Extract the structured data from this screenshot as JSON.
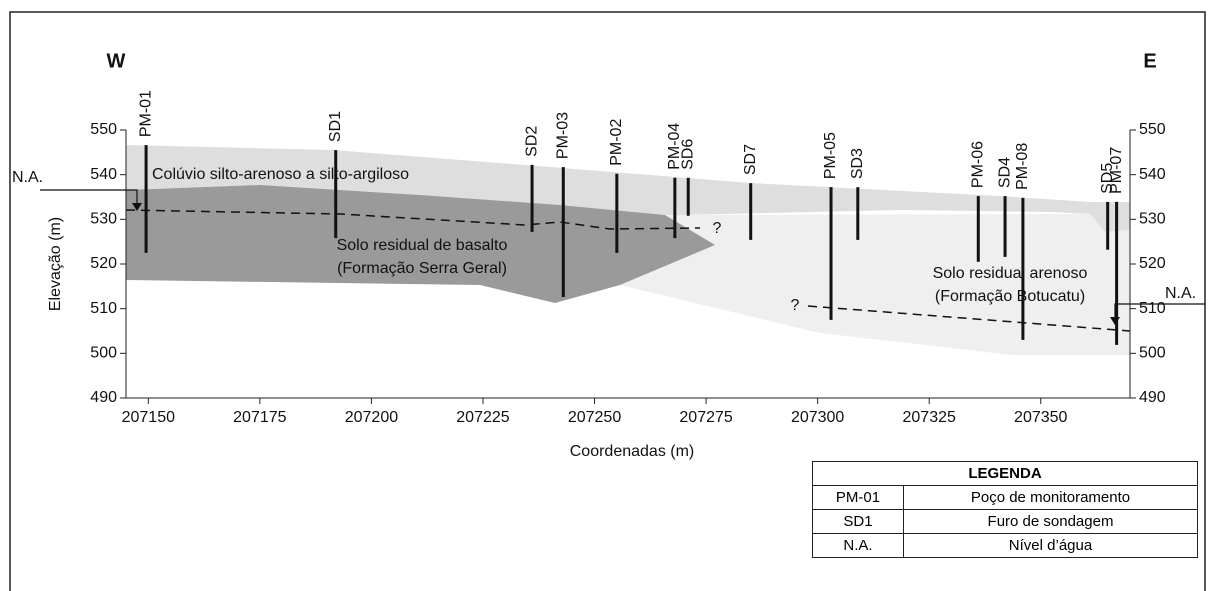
{
  "chart_data": {
    "type": "cross-section",
    "xlabel": "Coordenadas (m)",
    "ylabel": "Elevação (m)",
    "xlim": [
      207145,
      207370
    ],
    "ylim": [
      490,
      550
    ],
    "xticks": [
      207150,
      207175,
      207200,
      207225,
      207250,
      207275,
      207300,
      207325,
      207350
    ],
    "yticks": [
      490,
      500,
      510,
      520,
      530,
      540,
      550
    ],
    "wells": [
      {
        "name": "PM-01",
        "x": 207149.5,
        "top": 546.6,
        "bottom": 522.5
      },
      {
        "name": "SD1",
        "x": 207192,
        "top": 545.5,
        "bottom": 525.8
      },
      {
        "name": "SD2",
        "x": 207236,
        "top": 542.2,
        "bottom": 527.2
      },
      {
        "name": "PM-03",
        "x": 207243,
        "top": 541.7,
        "bottom": 512.6
      },
      {
        "name": "PM-02",
        "x": 207255,
        "top": 540.2,
        "bottom": 522.5
      },
      {
        "name": "PM-04",
        "x": 207268,
        "top": 539.3,
        "bottom": 525.8
      },
      {
        "name": "SD6",
        "x": 207271,
        "top": 539.3,
        "bottom": 530.8
      },
      {
        "name": "SD7",
        "x": 207285,
        "top": 538.1,
        "bottom": 525.4
      },
      {
        "name": "PM-05",
        "x": 207303,
        "top": 537.2,
        "bottom": 507.5
      },
      {
        "name": "SD3",
        "x": 207309,
        "top": 537.2,
        "bottom": 525.4
      },
      {
        "name": "PM-06",
        "x": 207336,
        "top": 535.2,
        "bottom": 520.5
      },
      {
        "name": "SD4",
        "x": 207342,
        "top": 535.2,
        "bottom": 521.6
      },
      {
        "name": "PM-08",
        "x": 207346,
        "top": 534.8,
        "bottom": 503
      },
      {
        "name": "SD5",
        "x": 207365,
        "top": 533.9,
        "bottom": 523.2
      },
      {
        "name": "PM-07",
        "x": 207367,
        "top": 533.9,
        "bottom": 501.9
      }
    ],
    "labels": {
      "west": "W",
      "east": "E",
      "colluvium": "Colúvio silto-arenoso a silto-argiloso",
      "basalt": "Solo residual de basalto",
      "basalt_formation": "(Formação Serra Geral)",
      "sandy": "Solo residual arenoso",
      "sandy_formation": "(Formação Botucatu)",
      "water_left": "N.A.",
      "water_right": "N.A.",
      "unknown_left": "?",
      "unknown_right": "?"
    }
  },
  "legend": {
    "title": "LEGENDA",
    "rows": [
      [
        "PM-01",
        "Poço de monitoramento"
      ],
      [
        "SD1",
        "Furo de sondagem"
      ],
      [
        "N.A.",
        "Nível d’água"
      ]
    ]
  }
}
